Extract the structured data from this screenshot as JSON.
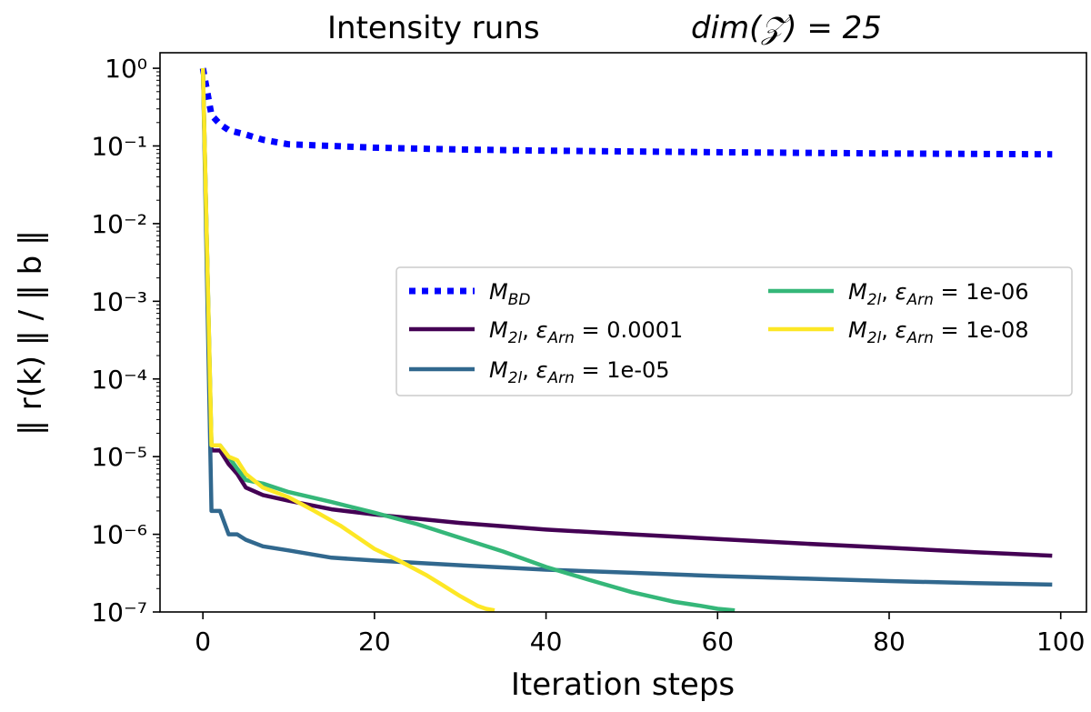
{
  "chart_data": {
    "type": "line",
    "title_left": "Intensity runs",
    "title_right": "dim(𝒵) = 25",
    "xlabel": "Iteration steps",
    "ylabel": "‖ r(k) ‖ / ‖ b ‖",
    "xlim": [
      -5,
      103
    ],
    "ylim_log10": [
      -7,
      0.2
    ],
    "yscale": "log",
    "xticks": [
      0,
      20,
      40,
      60,
      80,
      100
    ],
    "yticks_exponents": [
      0,
      -1,
      -2,
      -3,
      -4,
      -5,
      -6,
      -7
    ],
    "x_tick_labels": [
      "0",
      "20",
      "40",
      "60",
      "80",
      "100"
    ],
    "y_tick_labels": [
      "10⁰",
      "10⁻¹",
      "10⁻²",
      "10⁻³",
      "10⁻⁴",
      "10⁻⁵",
      "10⁻⁶",
      "10⁻⁷"
    ],
    "legend_position": "center-right",
    "series": [
      {
        "name": "M_BD",
        "label_base": "M",
        "label_sub": "BD",
        "label_rest": "",
        "color": "#0000ff",
        "style": "dotted",
        "x": [
          0,
          1,
          2,
          3,
          5,
          7,
          10,
          15,
          20,
          30,
          40,
          60,
          80,
          99
        ],
        "y": [
          1.0,
          0.25,
          0.19,
          0.16,
          0.14,
          0.12,
          0.105,
          0.1,
          0.095,
          0.09,
          0.087,
          0.083,
          0.08,
          0.078
        ]
      },
      {
        "name": "M_2l, eps_Arn = 0.0001",
        "label_base": "M",
        "label_sub": "2l",
        "label_rest": ", εArn = 0.0001",
        "eps_label": "0.0001",
        "color": "#440154",
        "style": "solid",
        "x": [
          0,
          1,
          2,
          3,
          4,
          5,
          7,
          10,
          15,
          20,
          30,
          40,
          50,
          60,
          70,
          80,
          90,
          99
        ],
        "y": [
          1.0,
          1.2e-05,
          1.2e-05,
          8e-06,
          6e-06,
          4e-06,
          3.2e-06,
          2.7e-06,
          2.1e-06,
          1.8e-06,
          1.4e-06,
          1.15e-06,
          1e-06,
          8.7e-07,
          7.6e-07,
          6.7e-07,
          5.9e-07,
          5.3e-07
        ]
      },
      {
        "name": "M_2l, eps_Arn = 1e-05",
        "label_base": "M",
        "label_sub": "2l",
        "label_rest": ", εArn = 1e-05",
        "eps_label": "1e-05",
        "color": "#31688e",
        "style": "solid",
        "x": [
          0,
          1,
          2,
          3,
          4,
          5,
          7,
          10,
          15,
          20,
          30,
          40,
          50,
          60,
          70,
          80,
          90,
          99
        ],
        "y": [
          1.0,
          2e-06,
          2e-06,
          1e-06,
          1e-06,
          8.5e-07,
          7e-07,
          6.2e-07,
          5e-07,
          4.6e-07,
          4e-07,
          3.5e-07,
          3.2e-07,
          2.9e-07,
          2.7e-07,
          2.5e-07,
          2.35e-07,
          2.25e-07
        ]
      },
      {
        "name": "M_2l, eps_Arn = 1e-06",
        "label_base": "M",
        "label_sub": "2l",
        "label_rest": ", εArn = 1e-06",
        "eps_label": "1e-06",
        "color": "#35b779",
        "style": "solid",
        "x": [
          0,
          1,
          2,
          3,
          4,
          5,
          7,
          10,
          15,
          20,
          25,
          30,
          35,
          40,
          45,
          50,
          55,
          58,
          60,
          62
        ],
        "y": [
          1.0,
          1.4e-05,
          1.4e-05,
          1e-05,
          7e-06,
          5e-06,
          4.5e-06,
          3.5e-06,
          2.6e-06,
          1.9e-06,
          1.35e-06,
          9e-07,
          6e-07,
          3.8e-07,
          2.6e-07,
          1.8e-07,
          1.35e-07,
          1.2e-07,
          1.1e-07,
          1.05e-07
        ]
      },
      {
        "name": "M_2l, eps_Arn = 1e-08",
        "label_base": "M",
        "label_sub": "2l",
        "label_rest": ", εArn = 1e-08",
        "eps_label": "1e-08",
        "color": "#fde725",
        "style": "solid",
        "x": [
          0,
          1,
          2,
          3,
          4,
          5,
          7,
          10,
          13,
          16,
          20,
          23,
          26,
          28,
          30,
          32,
          33,
          34
        ],
        "y": [
          1.0,
          1.4e-05,
          1.4e-05,
          1e-05,
          9e-06,
          6e-06,
          4e-06,
          3e-06,
          2e-06,
          1.3e-06,
          6.5e-07,
          4.5e-07,
          3e-07,
          2.2e-07,
          1.6e-07,
          1.2e-07,
          1.1e-07,
          1.05e-07
        ]
      }
    ]
  }
}
